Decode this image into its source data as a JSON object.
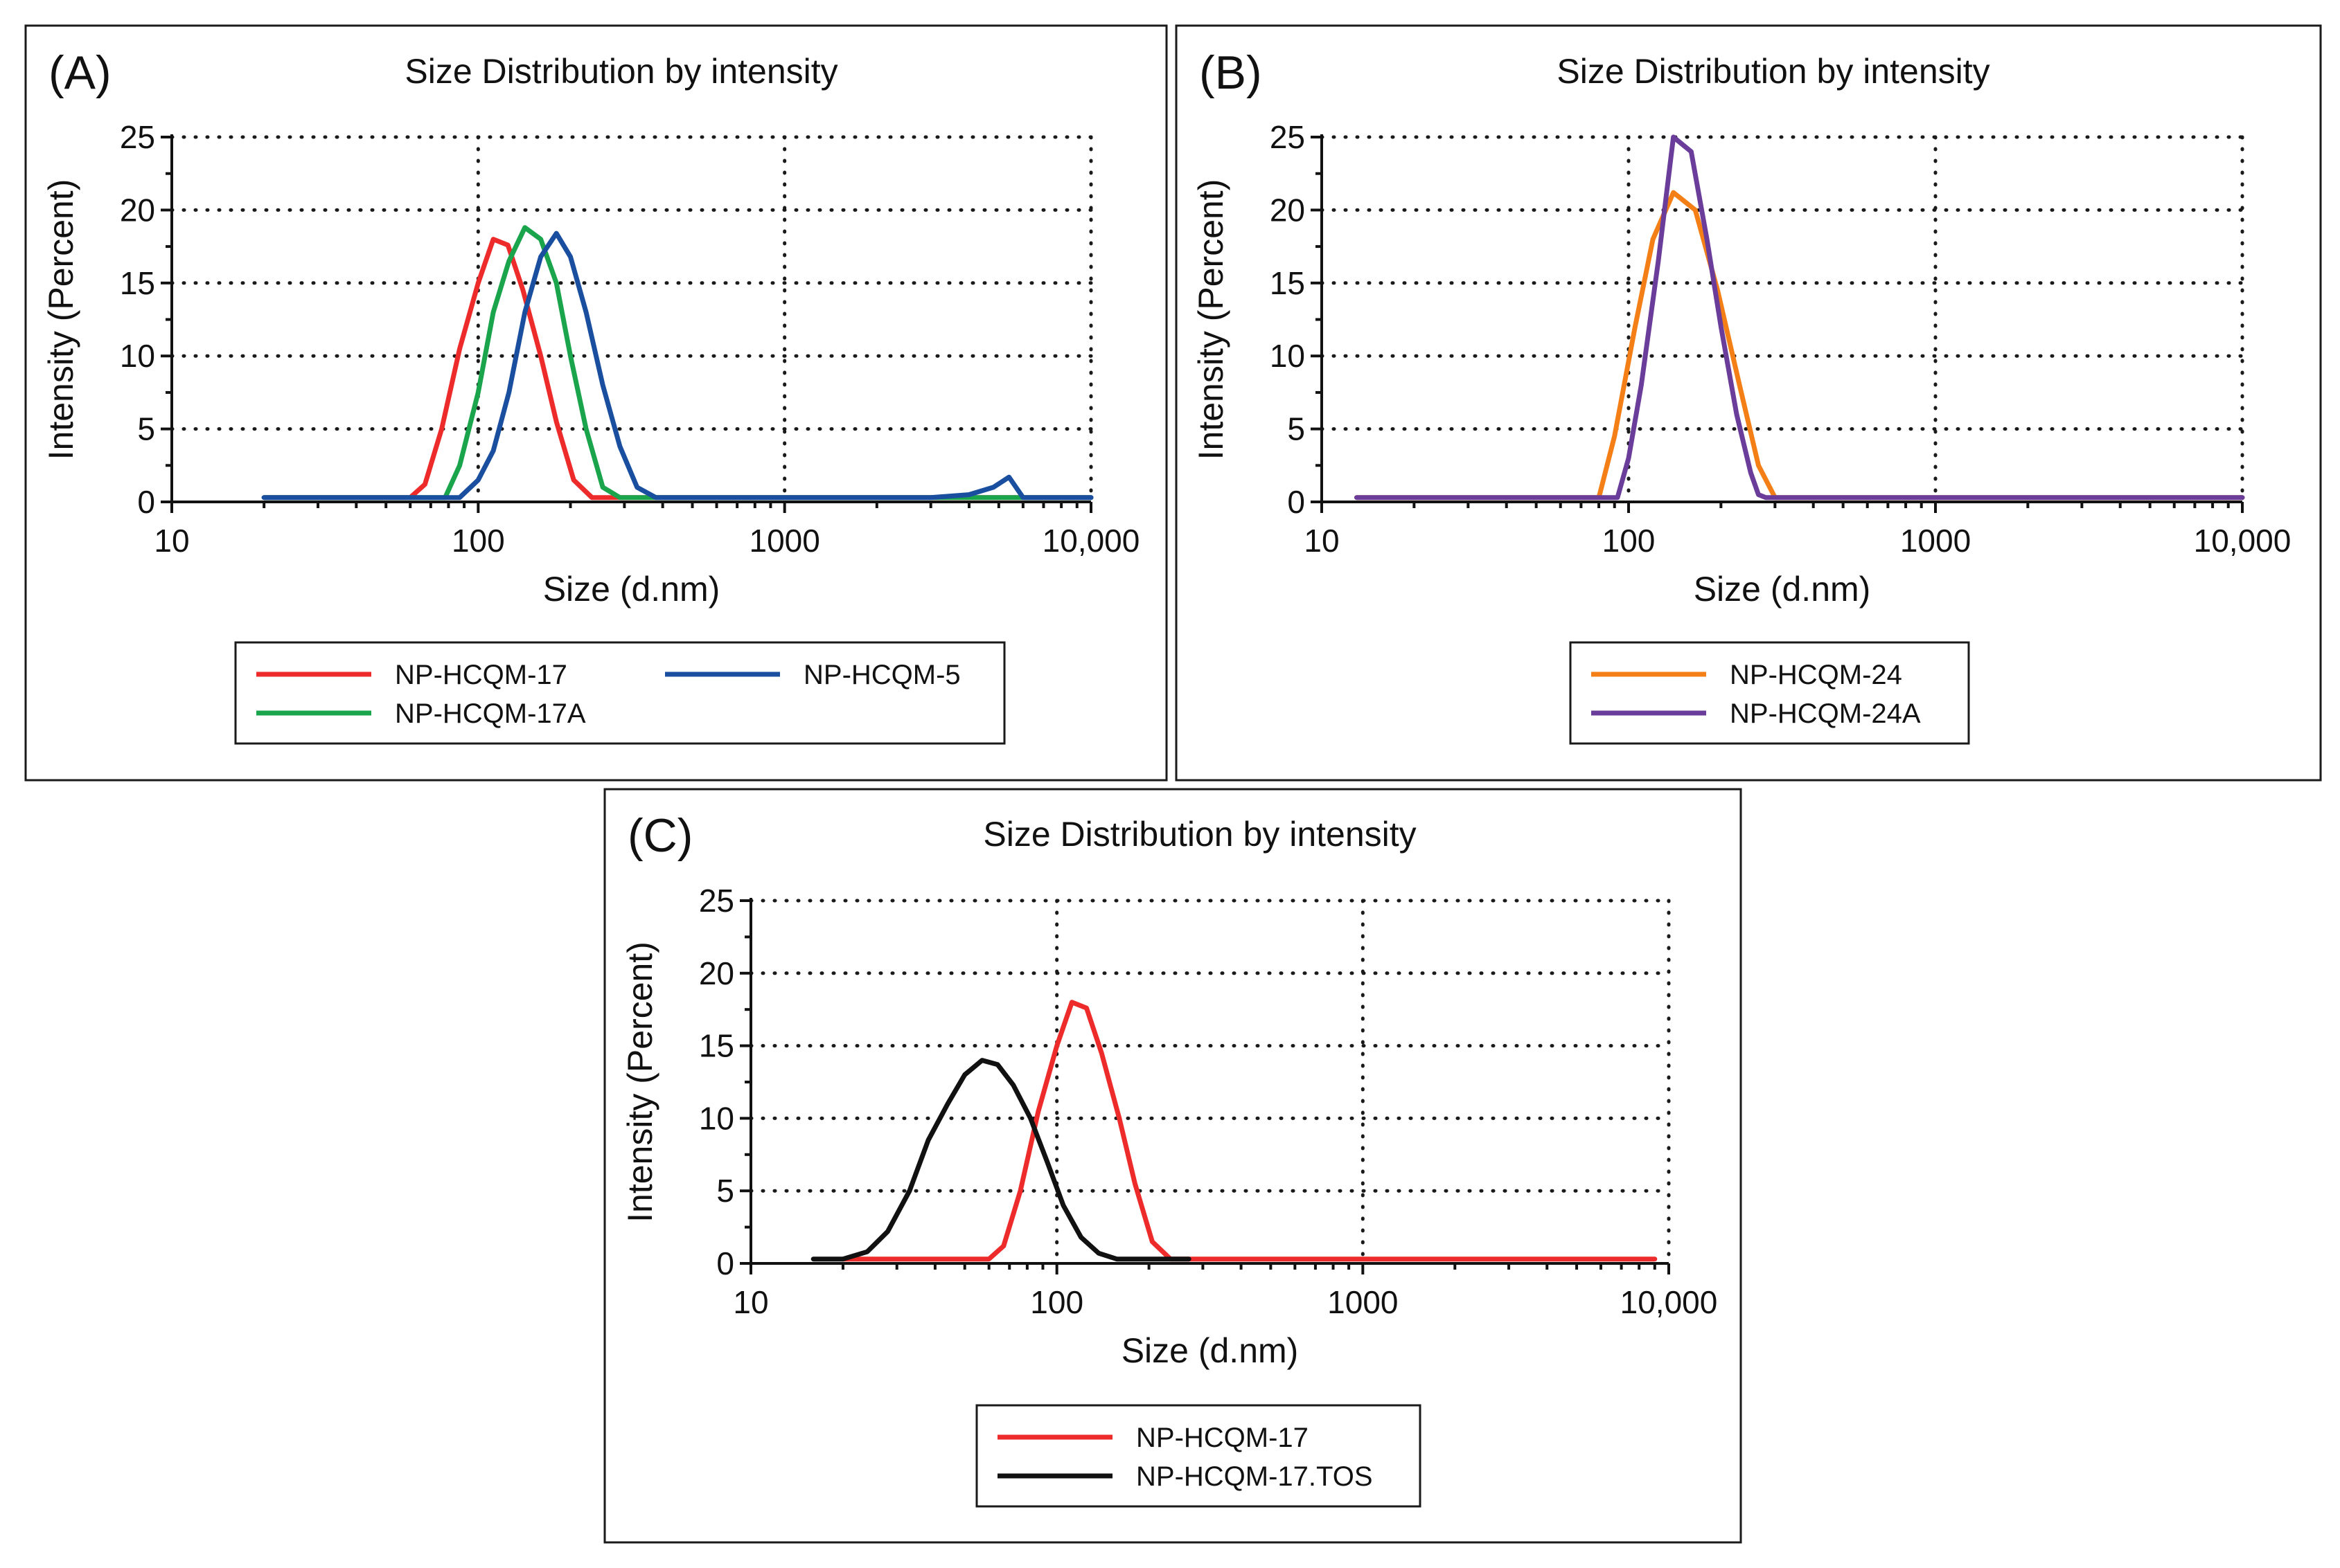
{
  "chart_data": [
    {
      "panel_label": "(A)",
      "type": "line",
      "title": "Size Distribution by intensity",
      "xlabel": "Size (d.nm)",
      "ylabel": "Intensity (Percent)",
      "xscale": "log",
      "xlim": [
        10,
        10000
      ],
      "ylim": [
        0,
        25
      ],
      "xticks": [
        10,
        100,
        1000,
        10000
      ],
      "xticklabels": [
        "10",
        "100",
        "1000",
        "10,000"
      ],
      "yticks": [
        0,
        5,
        10,
        15,
        20,
        25
      ],
      "yticklabels": [
        "0",
        "5",
        "10",
        "15",
        "20",
        "25"
      ],
      "grid": true,
      "legend_columns": 2,
      "series": [
        {
          "name": "NP-HCQM-17",
          "color": "#ee2b2b",
          "x": [
            20,
            30,
            45,
            60,
            67,
            76,
            87,
            100,
            112,
            125,
            140,
            160,
            180,
            205,
            235,
            265,
            300,
            340,
            400,
            1000,
            3000,
            5000,
            10000
          ],
          "y": [
            0.3,
            0.3,
            0.3,
            0.3,
            1.2,
            5.0,
            10.5,
            15.0,
            18.0,
            17.6,
            14.5,
            10.0,
            5.5,
            1.5,
            0.3,
            0.3,
            0.3,
            0.3,
            0.3,
            0.3,
            0.3,
            0.3,
            0.3
          ]
        },
        {
          "name": "NP-HCQM-17A",
          "color": "#1aa54d",
          "x": [
            20,
            40,
            60,
            78,
            87,
            100,
            112,
            126,
            142,
            160,
            180,
            200,
            225,
            255,
            290,
            330,
            380,
            420,
            1000,
            3000,
            10000
          ],
          "y": [
            0.3,
            0.3,
            0.3,
            0.3,
            2.5,
            7.5,
            13.0,
            16.5,
            18.8,
            18.0,
            15.0,
            10.0,
            5.0,
            1.0,
            0.3,
            0.3,
            0.3,
            0.3,
            0.3,
            0.3,
            0.3
          ]
        },
        {
          "name": "NP-HCQM-5",
          "color": "#1a4fa0",
          "x": [
            20,
            50,
            87,
            100,
            112,
            126,
            142,
            160,
            180,
            200,
            225,
            255,
            290,
            330,
            380,
            430,
            480,
            1000,
            3000,
            4000,
            4800,
            5400,
            6000,
            7000,
            10000
          ],
          "y": [
            0.3,
            0.3,
            0.3,
            1.5,
            3.5,
            7.5,
            13.0,
            16.8,
            18.4,
            16.8,
            13.0,
            8.0,
            3.8,
            1.0,
            0.3,
            0.3,
            0.3,
            0.3,
            0.3,
            0.5,
            1.0,
            1.7,
            0.3,
            0.3,
            0.3
          ]
        }
      ]
    },
    {
      "panel_label": "(B)",
      "type": "line",
      "title": "Size Distribution by intensity",
      "xlabel": "Size (d.nm)",
      "ylabel": "Intensity (Percent)",
      "xscale": "log",
      "xlim": [
        10,
        10000
      ],
      "ylim": [
        0,
        25
      ],
      "xticks": [
        10,
        100,
        1000,
        10000
      ],
      "xticklabels": [
        "10",
        "100",
        "1000",
        "10,000"
      ],
      "yticks": [
        0,
        5,
        10,
        15,
        20,
        25
      ],
      "yticklabels": [
        "0",
        "5",
        "10",
        "15",
        "20",
        "25"
      ],
      "grid": true,
      "legend_columns": 1,
      "series": [
        {
          "name": "NP-HCQM-24",
          "color": "#f57f17",
          "x": [
            13,
            30,
            60,
            80,
            90,
            105,
            120,
            140,
            165,
            195,
            230,
            265,
            300,
            1000,
            3000,
            10000
          ],
          "y": [
            0.3,
            0.3,
            0.3,
            0.3,
            4.5,
            12.0,
            18.0,
            21.2,
            20.0,
            14.5,
            8.0,
            2.5,
            0.3,
            0.3,
            0.3,
            0.3
          ]
        },
        {
          "name": "NP-HCQM-24A",
          "color": "#6a3d9a",
          "x": [
            13,
            50,
            92,
            100,
            110,
            125,
            140,
            160,
            180,
            200,
            225,
            250,
            265,
            280,
            1000,
            10000
          ],
          "y": [
            0.3,
            0.3,
            0.3,
            3.0,
            8.0,
            16.5,
            25.0,
            24.0,
            18.0,
            12.0,
            6.0,
            2.0,
            0.5,
            0.3,
            0.3,
            0.3
          ]
        }
      ]
    },
    {
      "panel_label": "(C)",
      "type": "line",
      "title": "Size Distribution by intensity",
      "xlabel": "Size (d.nm)",
      "ylabel": "Intensity (Percent)",
      "xscale": "log",
      "xlim": [
        10,
        10000
      ],
      "ylim": [
        0,
        25
      ],
      "xticks": [
        10,
        100,
        1000,
        10000
      ],
      "xticklabels": [
        "10",
        "100",
        "1000",
        "10,000"
      ],
      "yticks": [
        0,
        5,
        10,
        15,
        20,
        25
      ],
      "yticklabels": [
        "0",
        "5",
        "10",
        "15",
        "20",
        "25"
      ],
      "grid": true,
      "legend_columns": 1,
      "series": [
        {
          "name": "NP-HCQM-17",
          "color": "#ee2b2b",
          "x": [
            20,
            40,
            60,
            67,
            76,
            87,
            100,
            112,
            125,
            140,
            160,
            180,
            205,
            235,
            265,
            300,
            1000,
            3000,
            9000
          ],
          "y": [
            0.3,
            0.3,
            0.3,
            1.2,
            5.0,
            10.5,
            15.0,
            18.0,
            17.6,
            14.5,
            10.0,
            5.5,
            1.5,
            0.3,
            0.3,
            0.3,
            0.3,
            0.3,
            0.3
          ]
        },
        {
          "name": "NP-HCQM-17.TOS",
          "color": "#111111",
          "x": [
            16,
            20,
            24,
            28,
            33,
            38,
            44,
            50,
            57,
            64,
            72,
            82,
            93,
            105,
            120,
            137,
            157,
            180,
            205,
            235,
            270
          ],
          "y": [
            0.3,
            0.3,
            0.8,
            2.2,
            5.0,
            8.5,
            11.0,
            13.0,
            14.0,
            13.7,
            12.3,
            10.0,
            7.0,
            4.0,
            1.8,
            0.7,
            0.3,
            0.3,
            0.3,
            0.3,
            0.3
          ]
        }
      ]
    }
  ]
}
